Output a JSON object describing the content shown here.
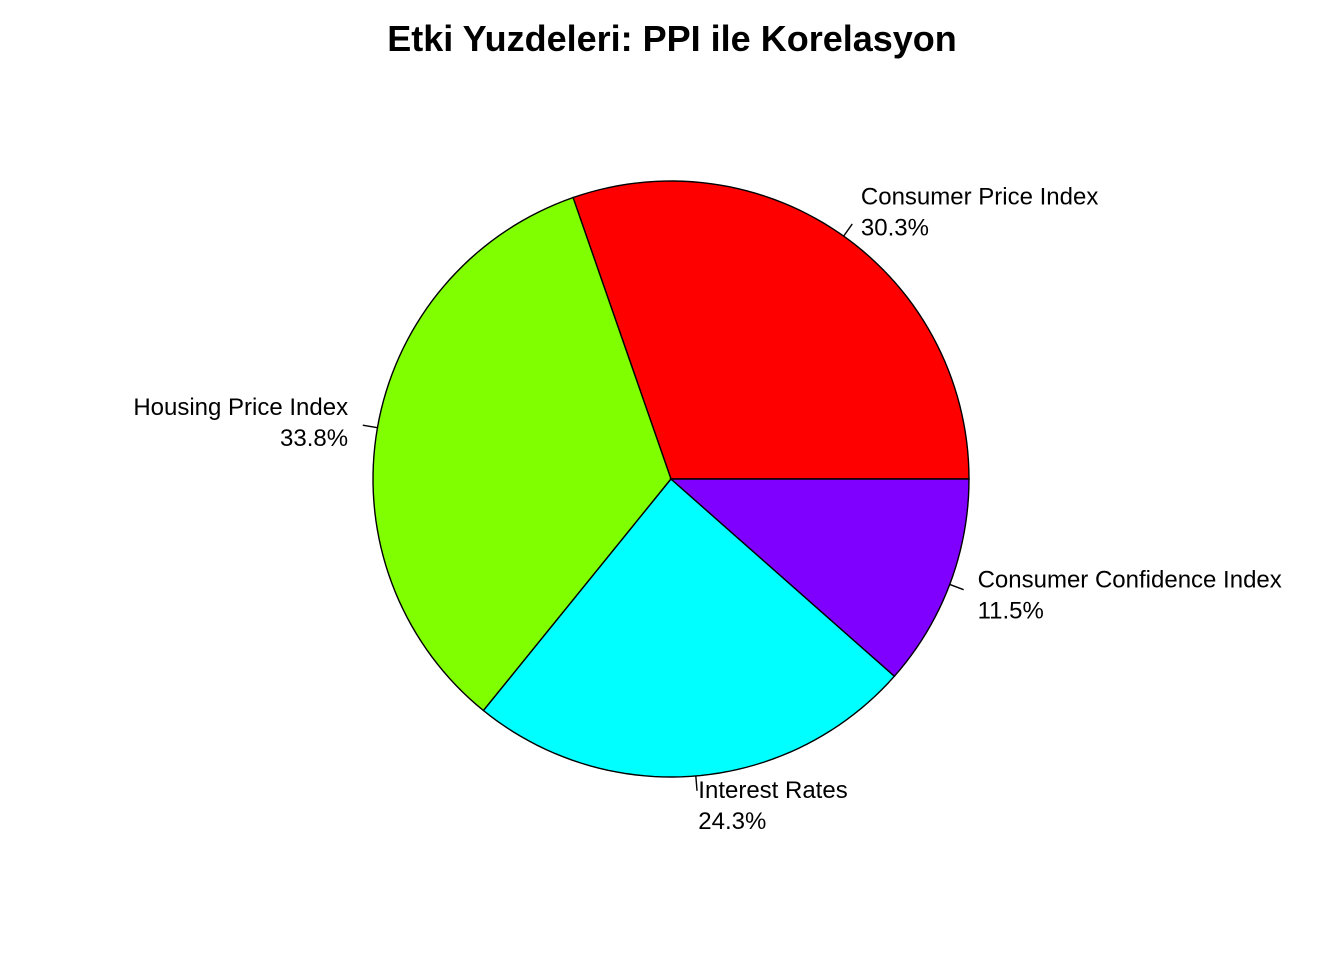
{
  "chart_data": {
    "type": "pie",
    "title": "Etki Yuzdeleri: PPI ile Korelasyon",
    "slices": [
      {
        "name": "Consumer Price Index",
        "percent_label": "30.3%",
        "value": 30.3,
        "color": "#FF0000"
      },
      {
        "name": "Housing Price Index",
        "percent_label": "33.8%",
        "value": 33.8,
        "color": "#80FF00"
      },
      {
        "name": "Interest Rates",
        "percent_label": "24.3%",
        "value": 24.3,
        "color": "#00FFFF"
      },
      {
        "name": "Consumer Confidence Index",
        "percent_label": "11.5%",
        "value": 11.5,
        "color": "#8000FF"
      }
    ],
    "direction": "counterclockwise",
    "start_angle_deg": 0,
    "legend": "none"
  }
}
